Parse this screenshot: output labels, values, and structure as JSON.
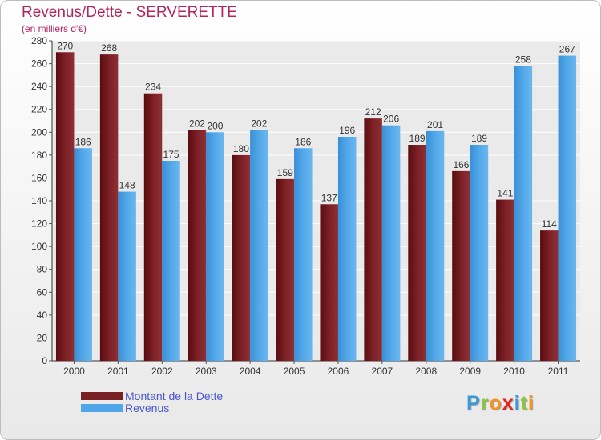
{
  "header": {
    "title": "Revenus/Dette - SERVERETTE",
    "subtitle": "(en milliers d'€)"
  },
  "legend": {
    "items": [
      {
        "label": "Montant de la Dette",
        "color": "#7a1f24"
      },
      {
        "label": "Revenus",
        "color": "#4fa7e8"
      }
    ]
  },
  "brand": {
    "letters": [
      "P",
      "r",
      "o",
      "x",
      "i",
      "t",
      "i"
    ],
    "colors": [
      "#3a9ad9",
      "#8cc63f",
      "#f7941d",
      "#e2231a",
      "#3a9ad9",
      "#8cc63f",
      "#f7941d"
    ]
  },
  "chart_data": {
    "type": "bar",
    "title": "Revenus/Dette - SERVERETTE",
    "subtitle": "(en milliers d'€)",
    "categories": [
      "2000",
      "2001",
      "2002",
      "2003",
      "2004",
      "2005",
      "2006",
      "2007",
      "2008",
      "2009",
      "2010",
      "2011"
    ],
    "series": [
      {
        "name": "Montant de la Dette",
        "color": "#7a1f24",
        "values": [
          270,
          268,
          234,
          202,
          180,
          159,
          137,
          212,
          189,
          166,
          141,
          114
        ]
      },
      {
        "name": "Revenus",
        "color": "#4fa7e8",
        "values": [
          186,
          148,
          175,
          200,
          202,
          186,
          196,
          206,
          201,
          189,
          258,
          267
        ]
      }
    ],
    "ylim": [
      0,
      280
    ],
    "yticks": [
      0,
      20,
      40,
      60,
      80,
      100,
      120,
      140,
      160,
      180,
      200,
      220,
      240,
      260,
      280
    ],
    "grid": true,
    "legend_position": "bottom-left"
  }
}
